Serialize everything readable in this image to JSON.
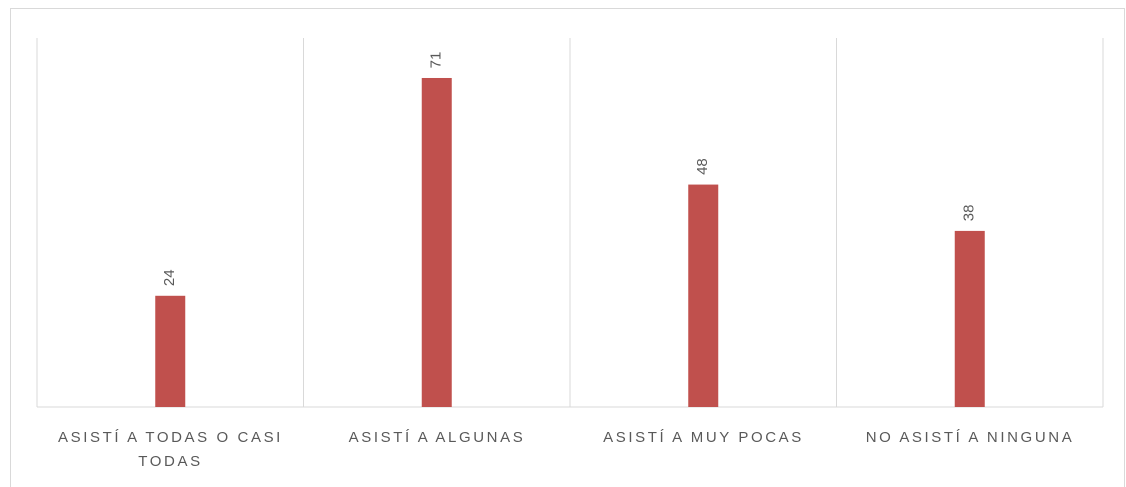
{
  "chart_data": {
    "type": "bar",
    "categories": [
      "ASISTÍ A TODAS O CASI TODAS",
      "ASISTÍ A ALGUNAS",
      "ASISTÍ A MUY POCAS",
      "NO ASISTÍ A NINGUNA"
    ],
    "values": [
      24,
      71,
      48,
      38
    ],
    "color": "#c0504d"
  }
}
